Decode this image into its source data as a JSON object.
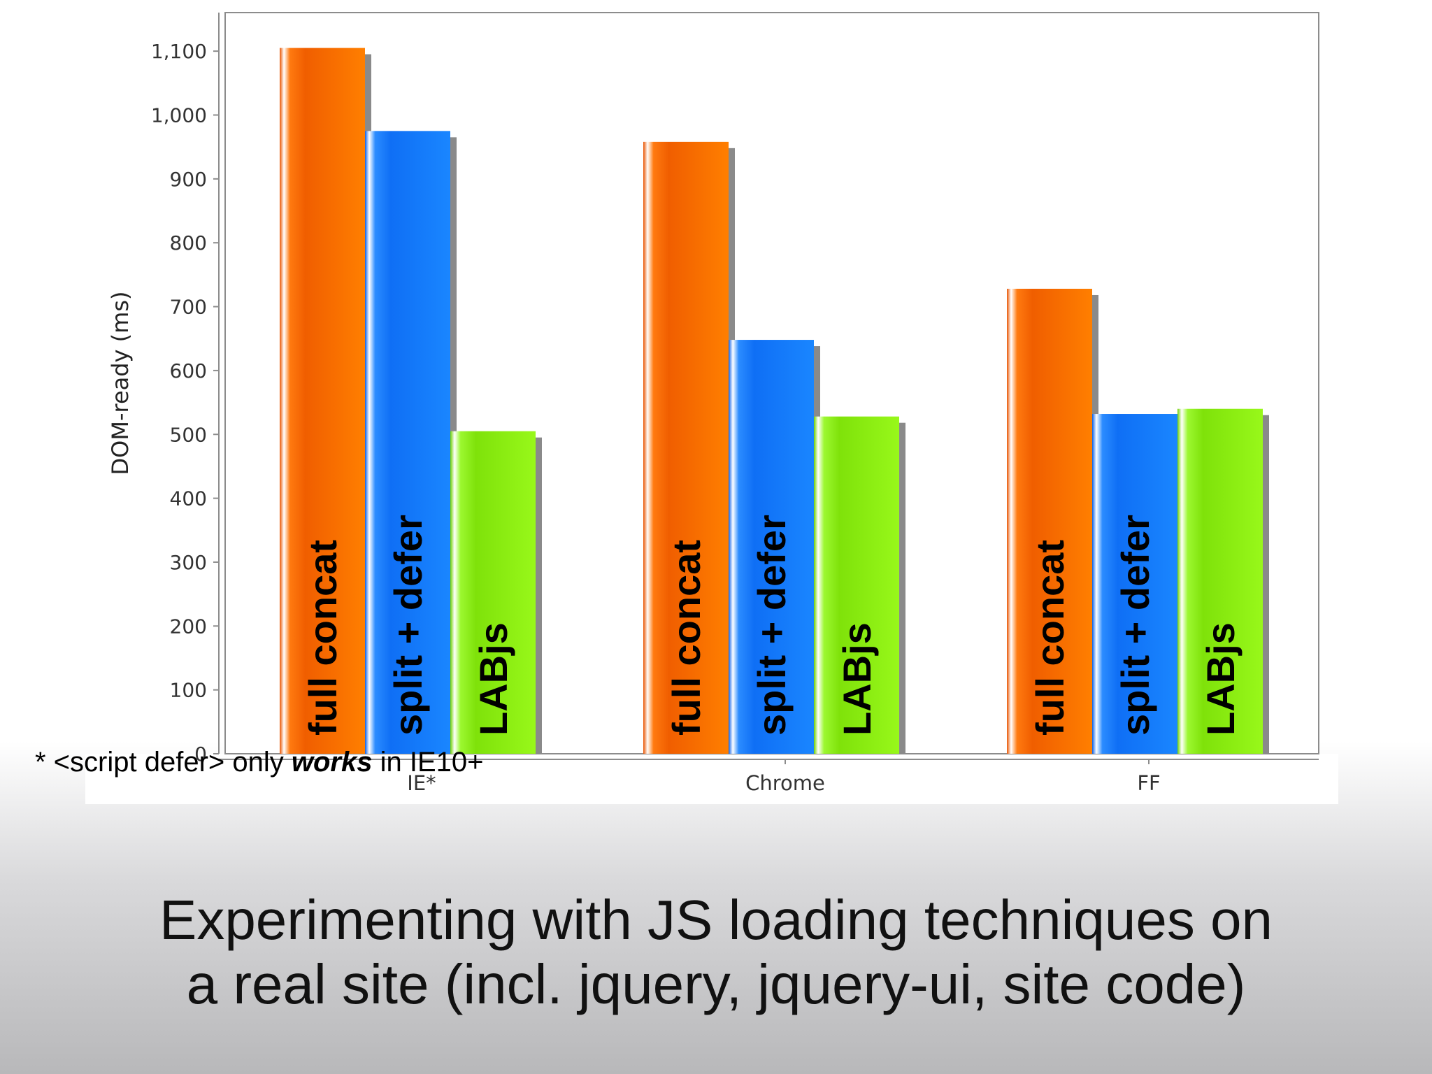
{
  "chart_data": {
    "type": "bar",
    "ylabel": "DOM-ready (ms)",
    "xlabel": "",
    "ylim": [
      0,
      1150
    ],
    "yticks": [
      0,
      100,
      200,
      300,
      400,
      500,
      600,
      700,
      800,
      900,
      1000,
      1100
    ],
    "ytick_labels": [
      "0",
      "100",
      "200",
      "300",
      "400",
      "500",
      "600",
      "700",
      "800",
      "900",
      "1,000",
      "1,100"
    ],
    "categories": [
      "IE*",
      "Chrome",
      "FF"
    ],
    "series": [
      {
        "name": "full concat",
        "color": "#ff6a00",
        "values": [
          1105,
          958,
          728
        ]
      },
      {
        "name": "split + defer",
        "color": "#1a7dff",
        "values": [
          975,
          648,
          532
        ]
      },
      {
        "name": "LABjs",
        "color": "#8ef014",
        "values": [
          505,
          528,
          540
        ]
      }
    ],
    "legend": "in-bar labels",
    "grid": false
  },
  "footnote": {
    "prefix": "* <script defer> only ",
    "emphasis": "works",
    "suffix": " in IE10+"
  },
  "caption": {
    "line1": "Experimenting with JS loading techniques on",
    "line2": "a real site (incl. jquery, jquery-ui, site code)"
  }
}
